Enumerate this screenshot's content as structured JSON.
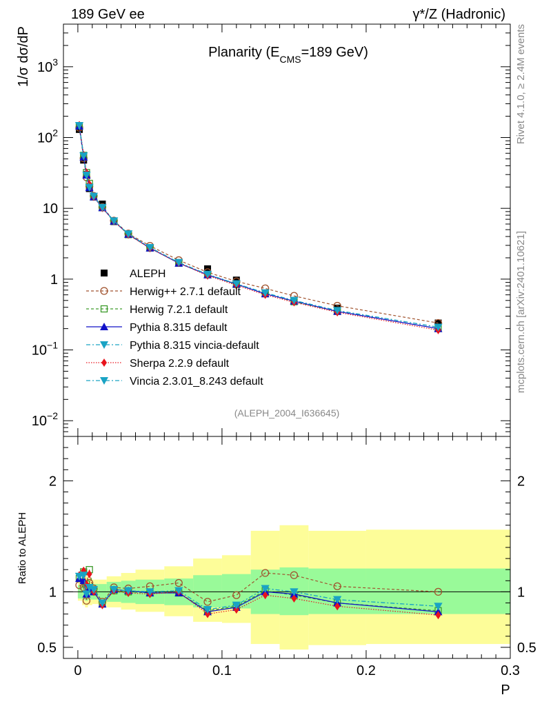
{
  "header": {
    "left": "189 GeV ee",
    "right": "γ*/Z (Hadronic)"
  },
  "side_labels": {
    "rivet": "Rivet 4.1.0, ≥ 2.4M events",
    "mcplots": "mcplots.cern.ch [arXiv:2401.10621]"
  },
  "chart_data": [
    {
      "type": "line",
      "panel": "main",
      "title": "Planarity (E_CMS=189 GeV)",
      "title_parts": {
        "a": "Planarity (E",
        "sub": "CMS",
        "b": "=189 GeV)"
      },
      "ylabel": "1/σ  dσ/dP",
      "yscale": "log",
      "xlim": [
        -0.01,
        0.3
      ],
      "ylim": [
        0.006,
        4000
      ],
      "x_ticks": [
        0,
        0.1,
        0.2,
        0.3
      ],
      "y_tick_labels": [
        {
          "v": 1000,
          "label": "10^3"
        },
        {
          "v": 100,
          "label": "10^2"
        },
        {
          "v": 10,
          "label": "10"
        },
        {
          "v": 1,
          "label": "1"
        },
        {
          "v": 0.1,
          "label": "10^-1"
        },
        {
          "v": 0.01,
          "label": "10^-2"
        }
      ],
      "watermark": "(ALEPH_2004_I636645)",
      "x": [
        0.001,
        0.004,
        0.006,
        0.008,
        0.011,
        0.017,
        0.025,
        0.035,
        0.05,
        0.07,
        0.09,
        0.11,
        0.13,
        0.15,
        0.18,
        0.25
      ],
      "series": [
        {
          "name": "ALEPH",
          "values": [
            130,
            48,
            30,
            19,
            14.5,
            11.5,
            6.5,
            4.3,
            2.8,
            1.7,
            1.4,
            0.97,
            0.62,
            0.5,
            0.39,
            0.24
          ]
        },
        {
          "name": "Herwig++ 2.7.1 default",
          "values": [
            138,
            51,
            27.5,
            20.5,
            15,
            10.4,
            6.7,
            4.4,
            2.95,
            1.85,
            1.25,
            0.93,
            0.74,
            0.58,
            0.42,
            0.24
          ]
        },
        {
          "name": "Herwig 7.2.1 default",
          "values": [
            145,
            56,
            32,
            22.5,
            14.5,
            10.2,
            6.6,
            4.25,
            2.75,
            1.68,
            1.15,
            0.84,
            0.63,
            0.48,
            0.35,
            0.2
          ]
        },
        {
          "name": "Pythia 8.315 default",
          "values": [
            145,
            53,
            29.5,
            19.6,
            14.5,
            10.2,
            6.6,
            4.3,
            2.75,
            1.68,
            1.15,
            0.85,
            0.62,
            0.49,
            0.35,
            0.2
          ]
        },
        {
          "name": "Pythia 8.315 vincia-default",
          "values": [
            148,
            55,
            29.5,
            19.8,
            14.8,
            10.3,
            6.65,
            4.35,
            2.8,
            1.72,
            1.17,
            0.86,
            0.64,
            0.5,
            0.36,
            0.21
          ]
        },
        {
          "name": "Sherpa 2.2.9 default",
          "values": [
            150,
            57,
            32,
            22,
            14.5,
            10.1,
            6.6,
            4.25,
            2.73,
            1.7,
            1.12,
            0.82,
            0.6,
            0.47,
            0.34,
            0.19
          ]
        },
        {
          "name": "Vincia 2.3.01_8.243 default",
          "values": [
            148,
            55,
            29.5,
            19.8,
            14.8,
            10.3,
            6.65,
            4.35,
            2.8,
            1.72,
            1.17,
            0.86,
            0.64,
            0.5,
            0.36,
            0.21
          ]
        }
      ]
    },
    {
      "type": "line",
      "panel": "ratio",
      "ylabel": "Ratio to ALEPH",
      "xlabel": "P",
      "xlim": [
        -0.01,
        0.3
      ],
      "ylim": [
        0.4,
        2.4
      ],
      "x_ticks": [
        0,
        0.1,
        0.2,
        0.3
      ],
      "x_tick_labels": [
        "0",
        "0.1",
        "0.2",
        "0.3"
      ],
      "y_ticks": [
        0.5,
        1,
        2
      ],
      "y_tick_labels": [
        "0.5",
        "1",
        "2"
      ],
      "x": [
        0.001,
        0.004,
        0.006,
        0.008,
        0.011,
        0.017,
        0.025,
        0.035,
        0.05,
        0.07,
        0.09,
        0.11,
        0.13,
        0.15,
        0.18,
        0.25
      ],
      "band_edges": [
        0,
        0.003,
        0.005,
        0.007,
        0.01,
        0.014,
        0.02,
        0.03,
        0.04,
        0.06,
        0.08,
        0.1,
        0.12,
        0.14,
        0.16,
        0.2,
        0.3
      ],
      "inner_band": [
        [
          0.94,
          1.06
        ],
        [
          0.93,
          1.07
        ],
        [
          0.92,
          1.08
        ],
        [
          0.93,
          1.07
        ],
        [
          0.93,
          1.07
        ],
        [
          0.93,
          1.07
        ],
        [
          0.91,
          1.09
        ],
        [
          0.9,
          1.1
        ],
        [
          0.89,
          1.11
        ],
        [
          0.88,
          1.12
        ],
        [
          0.86,
          1.15
        ],
        [
          0.85,
          1.16
        ],
        [
          0.8,
          1.2
        ],
        [
          0.79,
          1.22
        ],
        [
          0.8,
          1.21
        ],
        [
          0.8,
          1.21
        ]
      ],
      "outer_band": [
        [
          0.92,
          1.1
        ],
        [
          0.88,
          1.13
        ],
        [
          0.86,
          1.14
        ],
        [
          0.88,
          1.12
        ],
        [
          0.89,
          1.11
        ],
        [
          0.89,
          1.11
        ],
        [
          0.86,
          1.14
        ],
        [
          0.84,
          1.17
        ],
        [
          0.82,
          1.2
        ],
        [
          0.78,
          1.23
        ],
        [
          0.73,
          1.3
        ],
        [
          0.72,
          1.33
        ],
        [
          0.53,
          1.55
        ],
        [
          0.48,
          1.6
        ],
        [
          0.52,
          1.55
        ],
        [
          0.53,
          1.56
        ]
      ],
      "series": [
        {
          "name": "Herwig++ 2.7.1 default",
          "values": [
            1.06,
            1.04,
            0.92,
            1.08,
            1.03,
            0.91,
            1.04,
            1.03,
            1.05,
            1.08,
            0.91,
            0.97,
            1.17,
            1.15,
            1.05,
            1.0
          ]
        },
        {
          "name": "Herwig 7.2.1 default",
          "values": [
            1.12,
            1.18,
            1.07,
            1.2,
            1.0,
            0.89,
            1.01,
            1.0,
            0.99,
            0.99,
            0.83,
            0.87,
            1.01,
            0.97,
            0.9,
            0.83
          ]
        },
        {
          "name": "Pythia 8.315 default",
          "values": [
            1.12,
            1.1,
            0.98,
            1.03,
            1.0,
            0.89,
            1.02,
            1.01,
            0.99,
            0.99,
            0.82,
            0.86,
            1.0,
            0.98,
            0.9,
            0.82
          ]
        },
        {
          "name": "Pythia 8.315 vincia-default",
          "values": [
            1.14,
            1.15,
            0.98,
            1.04,
            1.02,
            0.9,
            1.02,
            1.01,
            1.0,
            1.01,
            0.84,
            0.88,
            1.03,
            1.0,
            0.93,
            0.87
          ]
        },
        {
          "name": "Sherpa 2.2.9 default",
          "values": [
            1.15,
            1.19,
            1.07,
            1.16,
            1.0,
            0.88,
            1.01,
            0.99,
            0.98,
            1.0,
            0.8,
            0.84,
            0.97,
            0.94,
            0.87,
            0.79
          ]
        },
        {
          "name": "Vincia 2.3.01_8.243 default",
          "values": [
            1.14,
            1.15,
            0.98,
            1.04,
            1.02,
            0.9,
            1.02,
            1.01,
            1.0,
            1.01,
            0.84,
            0.88,
            1.03,
            1.0,
            0.93,
            0.87
          ]
        }
      ]
    }
  ],
  "legend": {
    "items": [
      {
        "label": "ALEPH",
        "color": "#000000",
        "marker": "square-filled",
        "dash": ""
      },
      {
        "label": "Herwig++ 2.7.1 default",
        "color": "#a0522d",
        "marker": "circle-open",
        "dash": "4,3"
      },
      {
        "label": "Herwig 7.2.1 default",
        "color": "#3c9a2b",
        "marker": "square-open",
        "dash": "4,3"
      },
      {
        "label": "Pythia 8.315 default",
        "color": "#1010c8",
        "marker": "triangle-up",
        "dash": ""
      },
      {
        "label": "Pythia 8.315 vincia-default",
        "color": "#1aa3c4",
        "marker": "triangle-down",
        "dash": "6,3,2,3"
      },
      {
        "label": "Sherpa 2.2.9 default",
        "color": "#e8141d",
        "marker": "diamond",
        "dash": "1.5,2"
      },
      {
        "label": "Vincia 2.3.01_8.243 default",
        "color": "#1aa3c4",
        "marker": "triangle-down",
        "dash": "6,3,2,3"
      }
    ]
  },
  "colors": {
    "inner_band": "#99fa99",
    "outer_band": "#fdfd99",
    "axis": "#000000",
    "grey_text": "#888888"
  }
}
